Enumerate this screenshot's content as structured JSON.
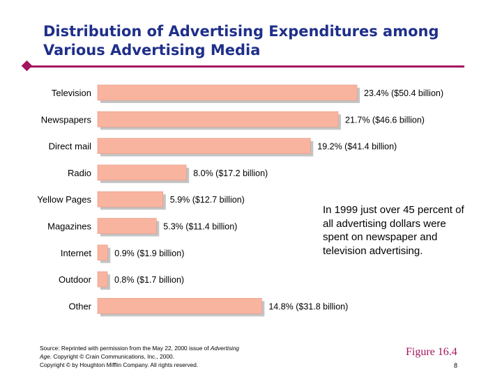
{
  "slide": {
    "title_line1": "Distribution of Advertising Expenditures among",
    "title_line2": "Various Advertising Media",
    "note": "In 1999 just over 45 percent of all advertising dollars were spent on newspaper and television advertising.",
    "source_line1_a": "Source: Reprinted with permission from the May 22, 2000 issue of ",
    "source_line1_b": "Advertising",
    "source_line2_a": "Age",
    "source_line2_b": ". Copyright © Crain Communications, Inc., 2000.",
    "source_line3": "Copyright © by Houghton Mifflin Company. All rights reserved.",
    "figure_label": "Figure 16.4",
    "page_number": "8"
  },
  "colors": {
    "bar_fill": "#f9b4a0",
    "bar_shadow": "#c4c4c4",
    "title": "#1f2f8a",
    "accent": "#a3135e"
  },
  "chart_data": {
    "type": "bar",
    "orientation": "horizontal",
    "title": "Distribution of Advertising Expenditures among Various Advertising Media",
    "categories": [
      "Television",
      "Newspapers",
      "Direct mail",
      "Radio",
      "Yellow Pages",
      "Magazines",
      "Internet",
      "Outdoor",
      "Other"
    ],
    "values": [
      23.4,
      21.7,
      19.2,
      8.0,
      5.9,
      5.3,
      0.9,
      0.8,
      14.8
    ],
    "value_labels": [
      "23.4%  ($50.4 billion)",
      "21.7%  ($46.6 billion)",
      "19.2%  ($41.4 billion)",
      "8.0%  ($17.2 billion)",
      "5.9%  ($12.7 billion)",
      "5.3%  ($11.4 billion)",
      "0.9%  ($1.9 billion)",
      "0.8%  ($1.7 billion)",
      "14.8%  ($31.8 billion)"
    ],
    "unit": "percent",
    "xlim": [
      0,
      25
    ],
    "grid": false
  }
}
